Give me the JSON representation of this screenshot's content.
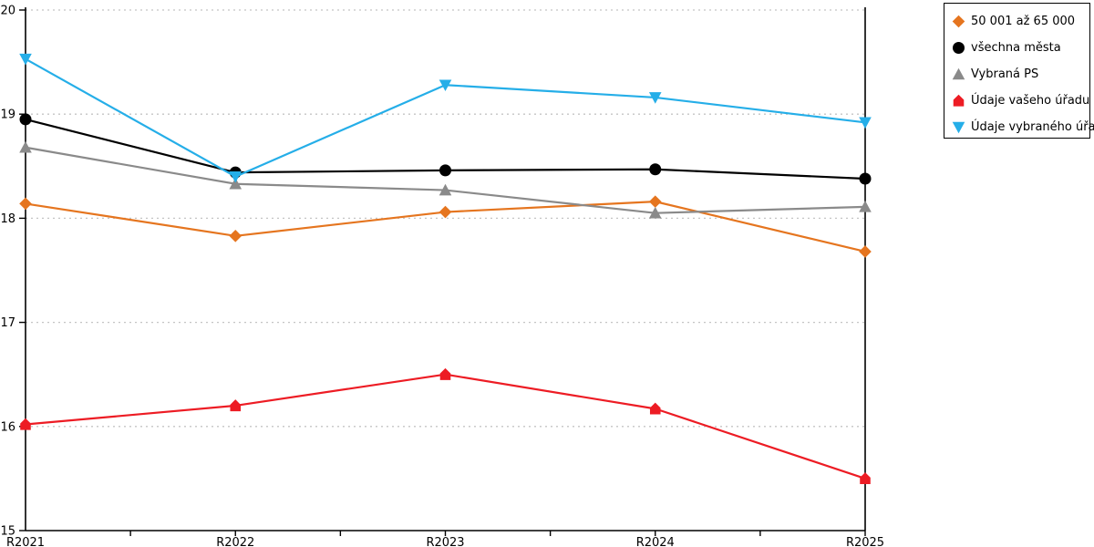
{
  "chart_data": {
    "type": "line",
    "categories": [
      "R2021",
      "R2022",
      "R2023",
      "R2024",
      "R2025"
    ],
    "series": [
      {
        "name": "50 001 až 65 000",
        "marker": "diamond",
        "color": "#E5751F",
        "values": [
          18.14,
          17.83,
          18.06,
          18.16,
          17.68
        ]
      },
      {
        "name": "všechna města",
        "marker": "circle",
        "color": "#000000",
        "values": [
          18.95,
          18.44,
          18.46,
          18.47,
          18.38
        ]
      },
      {
        "name": "Vybraná PS",
        "marker": "triangle-up",
        "color": "#8A8A8A",
        "values": [
          18.68,
          18.33,
          18.27,
          18.05,
          18.11
        ]
      },
      {
        "name": "Údaje vašeho úřadu",
        "marker": "pentagon",
        "color": "#ED1C24",
        "values": [
          16.02,
          16.2,
          16.5,
          16.17,
          15.5
        ]
      },
      {
        "name": "Údaje vybraného úřadu",
        "marker": "triangle-down",
        "color": "#25AEE8",
        "values": [
          19.53,
          18.4,
          19.28,
          19.16,
          18.92
        ]
      }
    ],
    "title": "",
    "xlabel": "",
    "ylabel": "",
    "ylim": [
      15,
      20
    ],
    "yticks": [
      15,
      16,
      17,
      18,
      19,
      20
    ],
    "grid": "horizontal-dotted",
    "grid_color": "#c4c4c4",
    "axis_color": "#000000",
    "legend_position": "top-right"
  }
}
